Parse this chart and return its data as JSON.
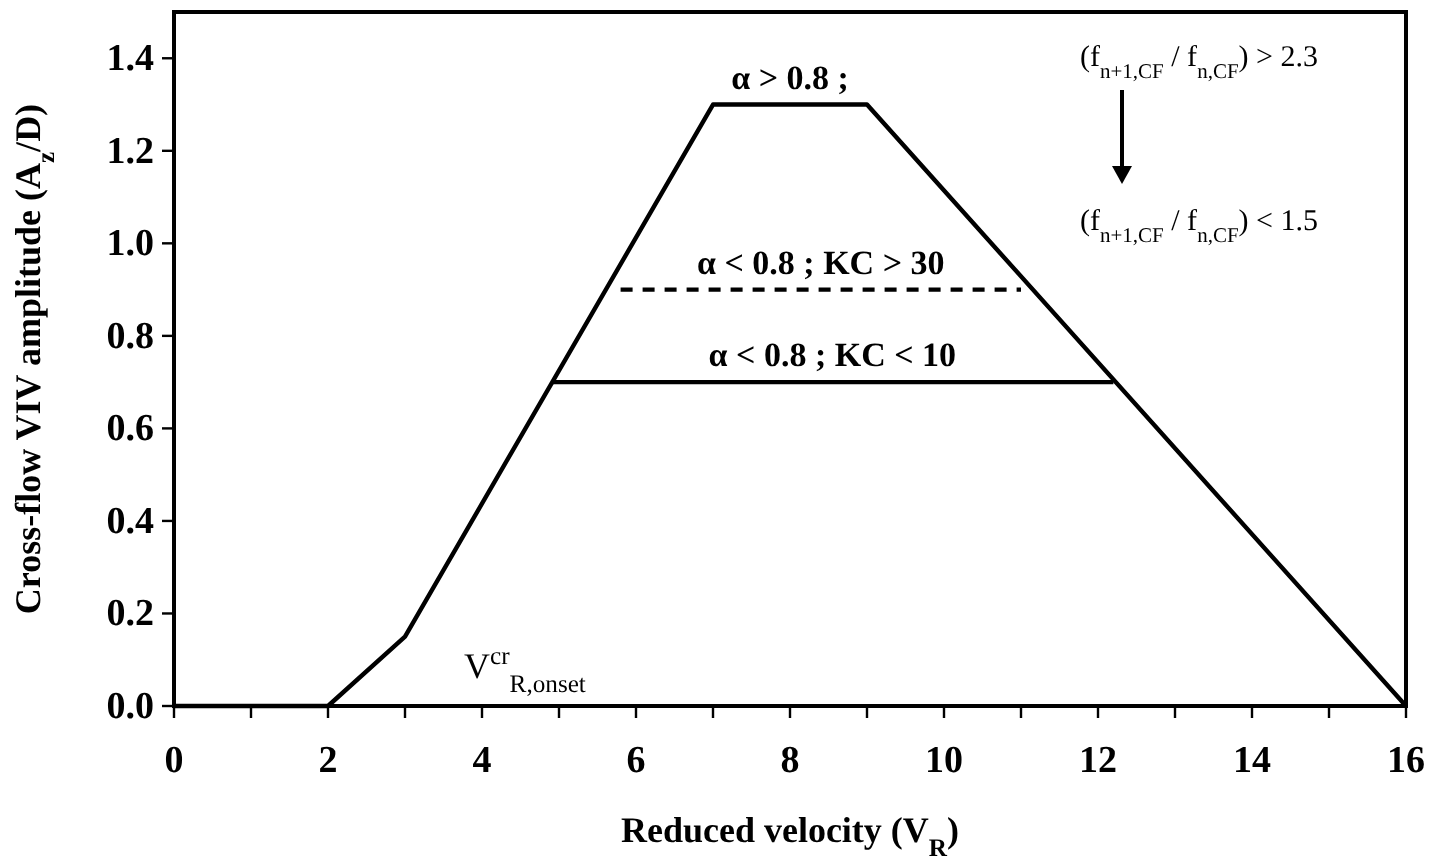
{
  "chart_data": {
    "type": "line",
    "xlabel": "Reduced velocity (V$_{R}$)",
    "ylabel": "Cross-flow VIV amplitude (A$_{z}$/D)",
    "xlim": [
      0,
      16
    ],
    "ylim": [
      0,
      1.5
    ],
    "xticks": [
      0,
      {
        "value": 1,
        "label": null
      },
      2,
      {
        "value": 3,
        "label": null
      },
      4,
      {
        "value": 5,
        "label": null
      },
      6,
      {
        "value": 7,
        "label": null
      },
      8,
      {
        "value": 9,
        "label": null
      },
      10,
      {
        "value": 11,
        "label": null
      },
      12,
      {
        "value": 13,
        "label": null
      },
      14,
      {
        "value": 15,
        "label": null
      },
      16
    ],
    "yticks": [
      {
        "value": 0,
        "label": "0.0"
      },
      {
        "value": 0.2,
        "label": "0.2"
      },
      {
        "value": 0.4,
        "label": "0.4"
      },
      {
        "value": 0.6,
        "label": "0.6"
      },
      {
        "value": 0.8,
        "label": "0.8"
      },
      {
        "value": 1,
        "label": "1.0"
      },
      {
        "value": 1.2,
        "label": "1.2"
      },
      {
        "value": 1.4,
        "label": "1.4"
      }
    ],
    "grid": false,
    "marker": "none",
    "series": [
      {
        "name": "α > 0.8 ;",
        "color": "#000000",
        "x": [
          0,
          2,
          3,
          7,
          9,
          16
        ],
        "values": [
          0,
          0,
          0.15,
          1.3,
          1.3,
          0
        ],
        "line_style": "solid"
      },
      {
        "name": "α < 0.8 ; KC > 30",
        "color": "#000000",
        "x": [
          5.8,
          11.0
        ],
        "values": [
          0.9,
          0.9
        ],
        "line_style": "dashed"
      },
      {
        "name": "α < 0.8 ; KC < 10",
        "color": "#000000",
        "x": [
          4.9,
          12.2
        ],
        "values": [
          0.7,
          0.7
        ],
        "line_style": "solid"
      }
    ],
    "annotations": [
      "V$^{cr}$$_{R,onset}$",
      "(f$_{n+1,CF}$ / f$_{n,CF}$) > 2.3",
      "(f$_{n+1,CF}$ / f$_{n,CF}$) < 1.5"
    ]
  }
}
